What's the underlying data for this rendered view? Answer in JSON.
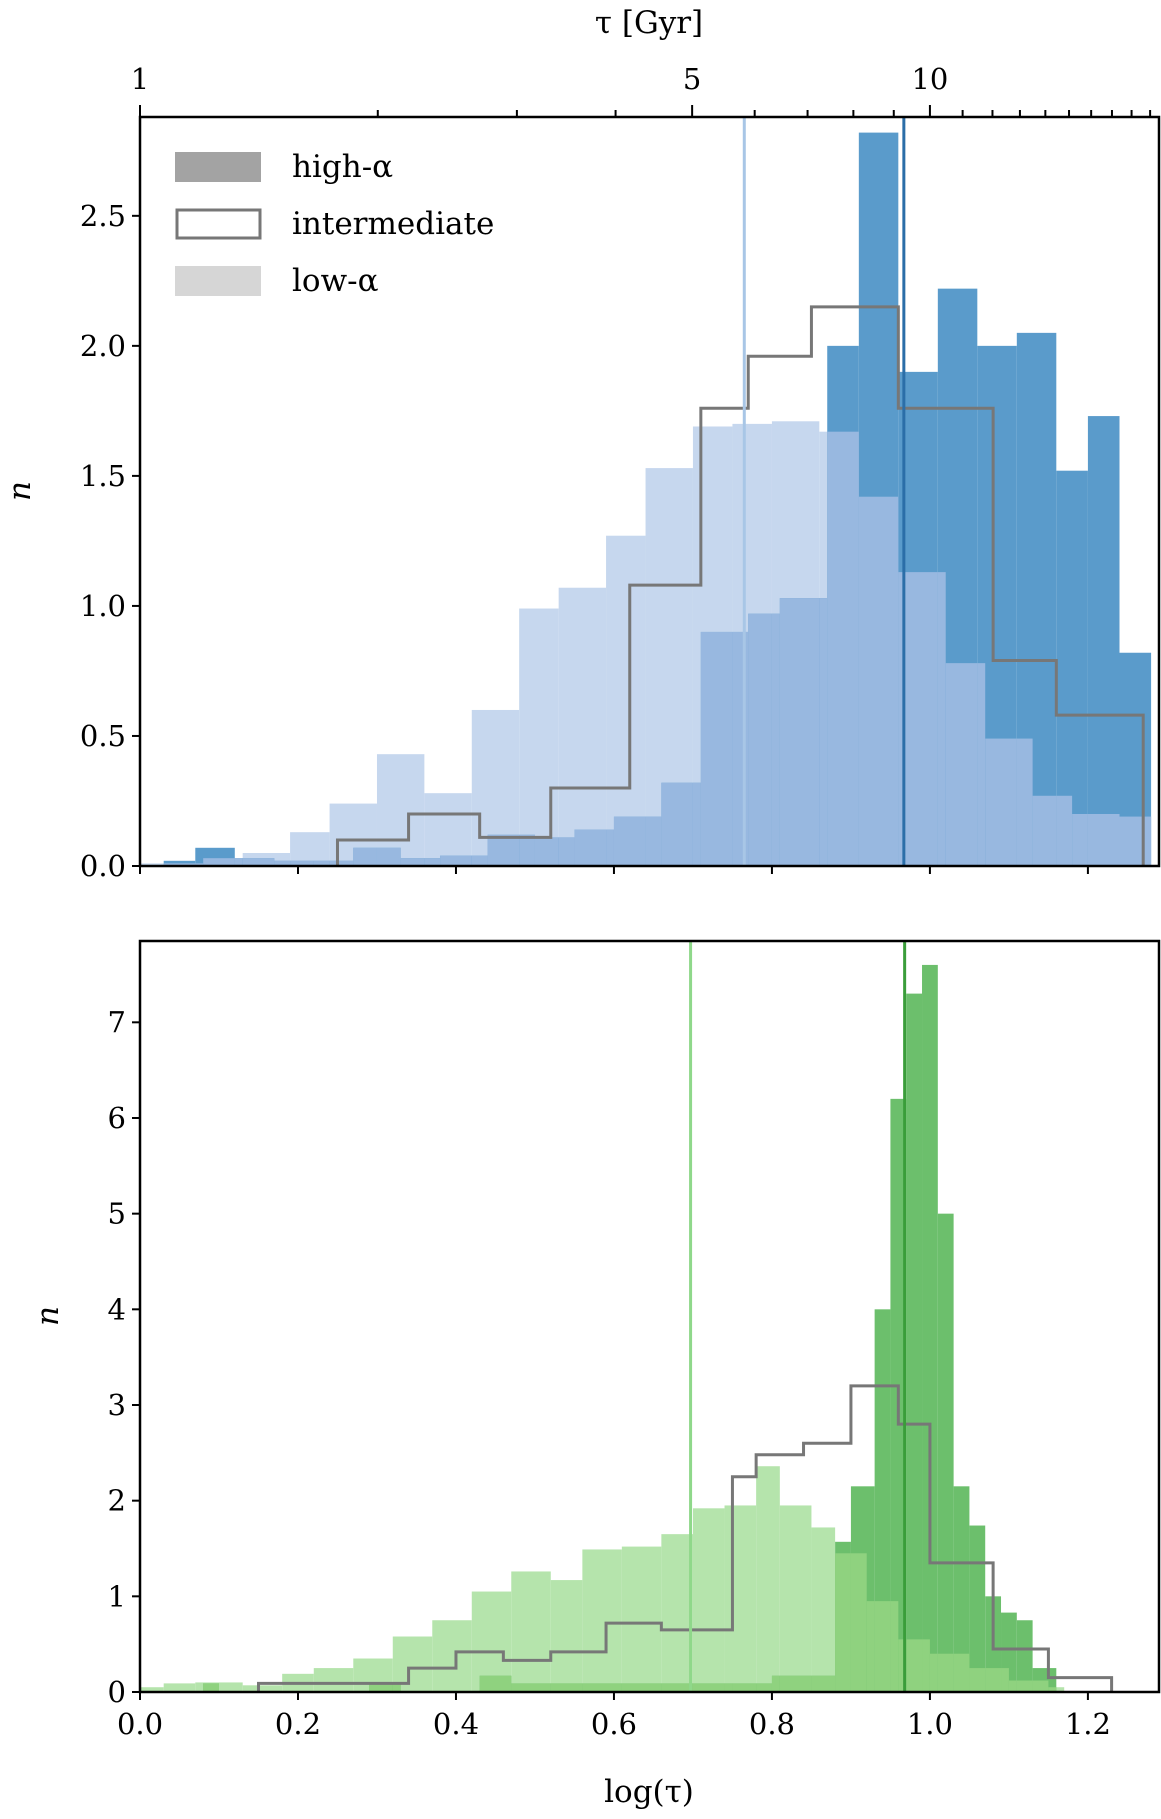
{
  "chart_data": [
    {
      "type": "bar",
      "panel": "top",
      "xlabel": "",
      "ylabel": "n",
      "top_axis_label": "τ [Gyr]",
      "top_ticks": [
        {
          "value": 1,
          "label": "1"
        },
        {
          "value": 5,
          "label": "5"
        },
        {
          "value": 10,
          "label": "10"
        }
      ],
      "top_minor_ticks": [
        2,
        3,
        4,
        6,
        7,
        8,
        9,
        11,
        12,
        13,
        14,
        15,
        16,
        17,
        18,
        19
      ],
      "xlim": [
        0.0,
        1.29
      ],
      "ylim": [
        0.0,
        2.88
      ],
      "yticks": [
        {
          "value": 0.0,
          "label": "0.0"
        },
        {
          "value": 0.5,
          "label": "0.5"
        },
        {
          "value": 1.0,
          "label": "1.0"
        },
        {
          "value": 1.5,
          "label": "1.5"
        },
        {
          "value": 2.0,
          "label": "2.0"
        },
        {
          "value": 2.5,
          "label": "2.5"
        }
      ],
      "xticks": [
        0.0,
        0.2,
        0.4,
        0.6,
        0.8,
        1.0,
        1.2
      ],
      "legend": {
        "position": "top-left",
        "entries": [
          {
            "label": "high-α",
            "style": "filled-dark"
          },
          {
            "label": "intermediate",
            "style": "outline"
          },
          {
            "label": "low-α",
            "style": "filled-light"
          }
        ]
      },
      "colors": {
        "high": "#5a9bcb",
        "low": "#c6d7ee",
        "mid_overlap": "#98b8e0",
        "intermediate": "#777777",
        "median_high": "#2b6ea8",
        "median_low": "#a8c6e6"
      },
      "series": [
        {
          "name": "high-α",
          "style": "filled-dark",
          "bins": [
            [
              0.03,
              0.07,
              0.02
            ],
            [
              0.07,
              0.12,
              0.07
            ],
            [
              0.12,
              0.17,
              0.03
            ],
            [
              0.17,
              0.22,
              0.02
            ],
            [
              0.22,
              0.27,
              0.02
            ],
            [
              0.27,
              0.33,
              0.07
            ],
            [
              0.33,
              0.38,
              0.03
            ],
            [
              0.38,
              0.44,
              0.04
            ],
            [
              0.44,
              0.5,
              0.12
            ],
            [
              0.5,
              0.55,
              0.11
            ],
            [
              0.55,
              0.6,
              0.14
            ],
            [
              0.6,
              0.66,
              0.19
            ],
            [
              0.66,
              0.71,
              0.32
            ],
            [
              0.71,
              0.77,
              0.9
            ],
            [
              0.77,
              0.81,
              0.97
            ],
            [
              0.81,
              0.87,
              1.03
            ],
            [
              0.87,
              0.91,
              2.0
            ],
            [
              0.91,
              0.96,
              2.82
            ],
            [
              0.96,
              1.01,
              1.9
            ],
            [
              1.01,
              1.06,
              2.22
            ],
            [
              1.06,
              1.11,
              2.0
            ],
            [
              1.11,
              1.16,
              2.05
            ],
            [
              1.16,
              1.2,
              1.52
            ],
            [
              1.2,
              1.24,
              1.73
            ],
            [
              1.24,
              1.28,
              0.82
            ]
          ]
        },
        {
          "name": "low-α",
          "style": "filled-light",
          "bins": [
            [
              0.0,
              0.03,
              0.01
            ],
            [
              0.03,
              0.08,
              0.01
            ],
            [
              0.08,
              0.13,
              0.03
            ],
            [
              0.13,
              0.19,
              0.05
            ],
            [
              0.19,
              0.24,
              0.13
            ],
            [
              0.24,
              0.3,
              0.24
            ],
            [
              0.3,
              0.36,
              0.43
            ],
            [
              0.36,
              0.42,
              0.28
            ],
            [
              0.42,
              0.48,
              0.6
            ],
            [
              0.48,
              0.53,
              0.99
            ],
            [
              0.53,
              0.59,
              1.07
            ],
            [
              0.59,
              0.64,
              1.27
            ],
            [
              0.64,
              0.7,
              1.53
            ],
            [
              0.7,
              0.75,
              1.69
            ],
            [
              0.75,
              0.8,
              1.7
            ],
            [
              0.8,
              0.86,
              1.71
            ],
            [
              0.86,
              0.91,
              1.67
            ],
            [
              0.91,
              0.96,
              1.42
            ],
            [
              0.96,
              1.02,
              1.13
            ],
            [
              1.02,
              1.07,
              0.78
            ],
            [
              1.07,
              1.13,
              0.49
            ],
            [
              1.13,
              1.18,
              0.27
            ],
            [
              1.18,
              1.24,
              0.2
            ],
            [
              1.24,
              1.28,
              0.19
            ]
          ]
        },
        {
          "name": "intermediate",
          "style": "outline",
          "bins": [
            [
              0.25,
              0.34,
              0.1
            ],
            [
              0.34,
              0.43,
              0.2
            ],
            [
              0.43,
              0.52,
              0.11
            ],
            [
              0.52,
              0.62,
              0.3
            ],
            [
              0.62,
              0.71,
              1.08
            ],
            [
              0.71,
              0.77,
              1.76
            ],
            [
              0.77,
              0.85,
              1.96
            ],
            [
              0.85,
              0.96,
              2.15
            ],
            [
              0.96,
              1.02,
              1.76
            ],
            [
              1.02,
              1.08,
              1.76
            ],
            [
              1.08,
              1.16,
              0.79
            ],
            [
              1.16,
              1.23,
              0.58
            ],
            [
              1.23,
              1.27,
              0.58
            ]
          ]
        }
      ],
      "medians": [
        {
          "series": "high-α",
          "x": 0.967
        },
        {
          "series": "low-α",
          "x": 0.765
        }
      ]
    },
    {
      "type": "bar",
      "panel": "bottom",
      "xlabel": "log(τ)",
      "ylabel": "n",
      "xlim": [
        0.0,
        1.29
      ],
      "ylim": [
        0.0,
        7.85
      ],
      "xticks": [
        {
          "value": 0.0,
          "label": "0.0"
        },
        {
          "value": 0.2,
          "label": "0.2"
        },
        {
          "value": 0.4,
          "label": "0.4"
        },
        {
          "value": 0.6,
          "label": "0.6"
        },
        {
          "value": 0.8,
          "label": "0.8"
        },
        {
          "value": 1.0,
          "label": "1.0"
        },
        {
          "value": 1.2,
          "label": "1.2"
        }
      ],
      "yticks": [
        {
          "value": 0,
          "label": "0"
        },
        {
          "value": 1,
          "label": "1"
        },
        {
          "value": 2,
          "label": "2"
        },
        {
          "value": 3,
          "label": "3"
        },
        {
          "value": 4,
          "label": "4"
        },
        {
          "value": 5,
          "label": "5"
        },
        {
          "value": 6,
          "label": "6"
        },
        {
          "value": 7,
          "label": "7"
        }
      ],
      "colors": {
        "high": "#6cbf6c",
        "low": "#b5e4ac",
        "mid_overlap": "#8fd27f",
        "intermediate": "#777777",
        "median_high": "#3a9d3a",
        "median_low": "#8fd88a"
      },
      "series": [
        {
          "name": "high-α",
          "style": "filled-dark",
          "bins": [
            [
              0.08,
              0.1,
              0.09
            ],
            [
              0.29,
              0.33,
              0.09
            ],
            [
              0.43,
              0.47,
              0.17
            ],
            [
              0.47,
              0.52,
              0.09
            ],
            [
              0.52,
              0.56,
              0.09
            ],
            [
              0.56,
              0.61,
              0.09
            ],
            [
              0.61,
              0.66,
              0.09
            ],
            [
              0.66,
              0.7,
              0.09
            ],
            [
              0.7,
              0.75,
              0.09
            ],
            [
              0.75,
              0.8,
              0.09
            ],
            [
              0.8,
              0.85,
              0.17
            ],
            [
              0.85,
              0.88,
              0.17
            ],
            [
              0.88,
              0.9,
              1.57
            ],
            [
              0.9,
              0.93,
              2.15
            ],
            [
              0.93,
              0.95,
              4.0
            ],
            [
              0.95,
              0.97,
              6.2
            ],
            [
              0.97,
              0.99,
              7.3
            ],
            [
              0.99,
              1.01,
              7.6
            ],
            [
              1.01,
              1.03,
              5.0
            ],
            [
              1.03,
              1.05,
              2.15
            ],
            [
              1.05,
              1.07,
              1.74
            ],
            [
              1.07,
              1.09,
              1.0
            ],
            [
              1.09,
              1.11,
              0.83
            ],
            [
              1.11,
              1.13,
              0.75
            ],
            [
              1.13,
              1.16,
              0.25
            ]
          ]
        },
        {
          "name": "low-α",
          "style": "filled-light",
          "bins": [
            [
              0.0,
              0.03,
              0.05
            ],
            [
              0.03,
              0.07,
              0.09
            ],
            [
              0.07,
              0.13,
              0.1
            ],
            [
              0.13,
              0.18,
              0.07
            ],
            [
              0.18,
              0.22,
              0.19
            ],
            [
              0.22,
              0.27,
              0.25
            ],
            [
              0.27,
              0.32,
              0.35
            ],
            [
              0.32,
              0.37,
              0.58
            ],
            [
              0.37,
              0.42,
              0.75
            ],
            [
              0.42,
              0.47,
              1.05
            ],
            [
              0.47,
              0.52,
              1.26
            ],
            [
              0.52,
              0.56,
              1.17
            ],
            [
              0.56,
              0.61,
              1.49
            ],
            [
              0.61,
              0.66,
              1.52
            ],
            [
              0.66,
              0.7,
              1.65
            ],
            [
              0.7,
              0.74,
              1.92
            ],
            [
              0.74,
              0.78,
              1.95
            ],
            [
              0.78,
              0.81,
              2.36
            ],
            [
              0.81,
              0.85,
              1.95
            ],
            [
              0.85,
              0.88,
              1.72
            ],
            [
              0.88,
              0.92,
              1.45
            ],
            [
              0.92,
              0.96,
              0.95
            ],
            [
              0.96,
              1.0,
              0.55
            ],
            [
              1.0,
              1.05,
              0.4
            ],
            [
              1.05,
              1.1,
              0.25
            ],
            [
              1.1,
              1.15,
              0.12
            ],
            [
              1.15,
              1.17,
              0.05
            ]
          ]
        },
        {
          "name": "intermediate",
          "style": "outline",
          "bins": [
            [
              0.15,
              0.22,
              0.09
            ],
            [
              0.22,
              0.34,
              0.09
            ],
            [
              0.34,
              0.4,
              0.25
            ],
            [
              0.4,
              0.46,
              0.42
            ],
            [
              0.46,
              0.52,
              0.33
            ],
            [
              0.52,
              0.59,
              0.42
            ],
            [
              0.59,
              0.66,
              0.72
            ],
            [
              0.66,
              0.7,
              0.65
            ],
            [
              0.7,
              0.75,
              0.65
            ],
            [
              0.75,
              0.78,
              2.25
            ],
            [
              0.78,
              0.84,
              2.48
            ],
            [
              0.84,
              0.9,
              2.6
            ],
            [
              0.9,
              0.96,
              3.2
            ],
            [
              0.96,
              1.0,
              2.8
            ],
            [
              1.0,
              1.08,
              1.35
            ],
            [
              1.08,
              1.15,
              0.45
            ],
            [
              1.15,
              1.22,
              0.15
            ],
            [
              1.22,
              1.23,
              0.15
            ]
          ]
        }
      ],
      "medians": [
        {
          "series": "high-α",
          "x": 0.968
        },
        {
          "series": "low-α",
          "x": 0.697
        }
      ]
    }
  ]
}
